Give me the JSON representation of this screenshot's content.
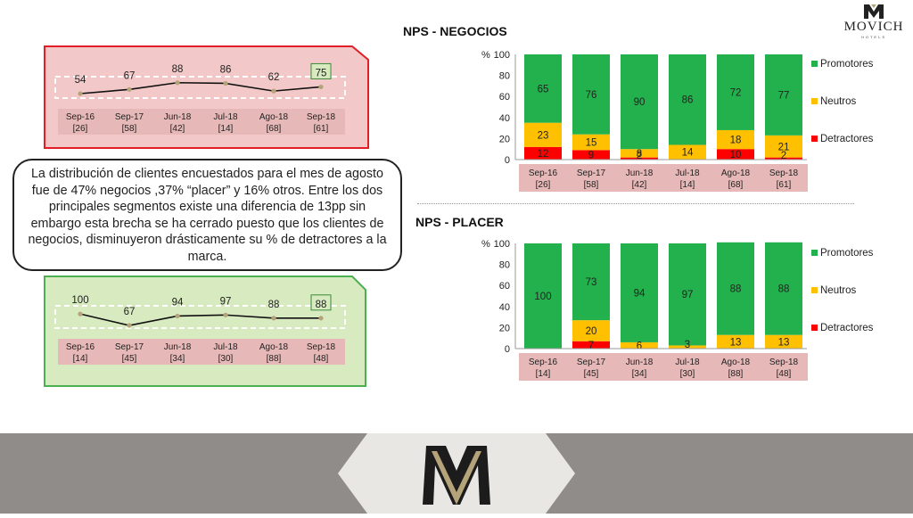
{
  "brand": {
    "name": "MOVICH",
    "subtitle": "HOTELS"
  },
  "callout_text": "La distribución de clientes encuestados para el mes de agosto fue de 47% negocios ,37% “placer” y 16% otros. Entre los dos principales segmentos existe una diferencia de 13pp sin embargo esta brecha se ha cerrado puesto que los clientes de negocios, disminuyeron drásticamente su % de detractores a la marca.",
  "colors": {
    "promotores": "#22b14c",
    "neutros": "#ffc000",
    "detractores": "#ff0000",
    "label_bg": "#e6b8b7",
    "negocios_panel": "#f2c8c8",
    "negocios_border": "#e21f26",
    "placer_panel": "#d8eac0",
    "placer_border": "#4caf50"
  },
  "chart_data": [
    {
      "id": "nps-negocios-line",
      "type": "line",
      "categories": [
        "Sep-16",
        "Sep-17",
        "Jun-18",
        "Jul-18",
        "Ago-18",
        "Sep-18"
      ],
      "counts": [
        "[26]",
        "[58]",
        "[42]",
        "[14]",
        "[68]",
        "[61]"
      ],
      "values": [
        54,
        67,
        88,
        86,
        62,
        75
      ],
      "highlight_last": true
    },
    {
      "id": "nps-placer-line",
      "type": "line",
      "categories": [
        "Sep-16",
        "Sep-17",
        "Jun-18",
        "Jul-18",
        "Ago-18",
        "Sep-18"
      ],
      "counts": [
        "[14]",
        "[45]",
        "[34]",
        "[30]",
        "[88]",
        "[48]"
      ],
      "values": [
        100,
        67,
        94,
        97,
        88,
        88
      ],
      "highlight_last": true
    },
    {
      "id": "nps-negocios-bar",
      "type": "bar",
      "stacked": true,
      "title": "NPS - NEGOCIOS",
      "ylabel": "%",
      "ylim": [
        0,
        100
      ],
      "yticks": [
        0,
        20,
        40,
        60,
        80,
        100
      ],
      "categories": [
        "Sep-16",
        "Sep-17",
        "Jun-18",
        "Jul-18",
        "Ago-18",
        "Sep-18"
      ],
      "counts": [
        "[26]",
        "[58]",
        "[42]",
        "[14]",
        "[68]",
        "[61]"
      ],
      "series": [
        {
          "name": "Detractores",
          "values": [
            12,
            9,
            2,
            0,
            10,
            2
          ]
        },
        {
          "name": "Neutros",
          "values": [
            23,
            15,
            8,
            14,
            18,
            21
          ]
        },
        {
          "name": "Promotores",
          "values": [
            65,
            76,
            90,
            86,
            72,
            77
          ]
        }
      ],
      "legend": [
        "Promotores",
        "Neutros",
        "Detractores"
      ],
      "legend_position": "right"
    },
    {
      "id": "nps-placer-bar",
      "type": "bar",
      "stacked": true,
      "title": "NPS - PLACER",
      "ylabel": "%",
      "ylim": [
        0,
        100
      ],
      "yticks": [
        0,
        20,
        40,
        60,
        80,
        100
      ],
      "categories": [
        "Sep-16",
        "Sep-17",
        "Jun-18",
        "Jul-18",
        "Ago-18",
        "Sep-18"
      ],
      "counts": [
        "[14]",
        "[45]",
        "[34]",
        "[30]",
        "[88]",
        "[48]"
      ],
      "series": [
        {
          "name": "Detractores",
          "values": [
            0,
            7,
            0,
            0,
            0,
            0
          ]
        },
        {
          "name": "Neutros",
          "values": [
            0,
            20,
            6,
            3,
            13,
            13
          ]
        },
        {
          "name": "Promotores",
          "values": [
            100,
            73,
            94,
            97,
            88,
            88
          ]
        }
      ],
      "legend": [
        "Promotores",
        "Neutros",
        "Detractores"
      ],
      "legend_position": "right"
    }
  ]
}
